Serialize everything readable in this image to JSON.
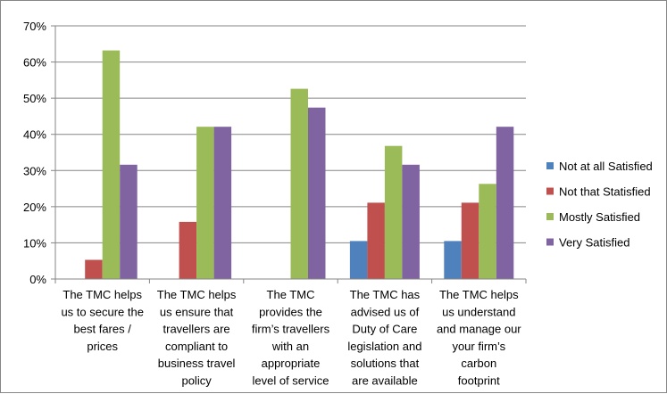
{
  "chart_data": {
    "type": "bar",
    "title": "",
    "xlabel": "",
    "ylabel": "",
    "ylim": [
      0,
      70
    ],
    "y_tick_format": "percent",
    "y_ticks": [
      0,
      10,
      20,
      30,
      40,
      50,
      60,
      70
    ],
    "y_tick_labels": [
      "0%",
      "10%",
      "20%",
      "30%",
      "40%",
      "50%",
      "60%",
      "70%"
    ],
    "grid": true,
    "legend_position": "right",
    "categories": [
      [
        "The TMC helps",
        "us to secure the",
        "best fares /",
        "prices"
      ],
      [
        "The TMC helps",
        "us ensure that",
        "travellers are",
        "compliant to",
        "business travel",
        "policy"
      ],
      [
        "The TMC",
        "provides the",
        "firm’s travellers",
        "with an",
        "appropriate",
        "level of service"
      ],
      [
        "The TMC has",
        "advised us of",
        "Duty of Care",
        "legislation and",
        "solutions that",
        "are available"
      ],
      [
        "The TMC helps",
        "us understand",
        "and manage our",
        "your firm’s",
        "carbon",
        "footprint"
      ]
    ],
    "series": [
      {
        "name": "Not at all Satisfied",
        "color": "#4f81bd",
        "values": [
          0,
          0,
          0,
          10.5,
          10.5
        ]
      },
      {
        "name": "Not that Statisfied",
        "color": "#c0504d",
        "values": [
          5.3,
          15.8,
          0,
          21.1,
          21.1
        ]
      },
      {
        "name": "Mostly Satisfied",
        "color": "#9bbb59",
        "values": [
          63.2,
          42.1,
          52.6,
          36.8,
          26.3
        ]
      },
      {
        "name": "Very Satisfied",
        "color": "#8064a2",
        "values": [
          31.6,
          42.1,
          47.4,
          31.6,
          42.1
        ]
      }
    ]
  }
}
